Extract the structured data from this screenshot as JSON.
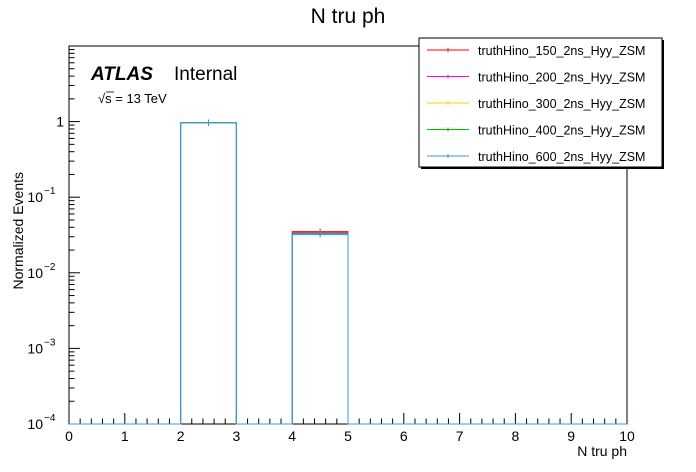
{
  "chart_data": {
    "type": "histogram",
    "title": "N tru ph",
    "xlabel": "N tru ph",
    "ylabel": "Normalized Events",
    "xlim": [
      0,
      10
    ],
    "ylim": [
      0.0001,
      10
    ],
    "log_y": true,
    "bin_edges": [
      0,
      1,
      2,
      3,
      4,
      5,
      6,
      7,
      8,
      9,
      10
    ],
    "x_tick_labels": [
      "0",
      "1",
      "2",
      "3",
      "4",
      "5",
      "6",
      "7",
      "8",
      "9",
      "10"
    ],
    "y_tick_labels": [
      {
        "value": 0.0001,
        "base": "10",
        "exp": "−4"
      },
      {
        "value": 0.001,
        "base": "10",
        "exp": "−3"
      },
      {
        "value": 0.01,
        "base": "10",
        "exp": "−2"
      },
      {
        "value": 0.1,
        "base": "10",
        "exp": "−1"
      },
      {
        "value": 1,
        "base": "1",
        "exp": ""
      }
    ],
    "annotations": {
      "atlas": "ATLAS",
      "internal": "Internal",
      "energy_prefix": "√s",
      "energy_value": " = 13 TeV"
    },
    "legend_position": "top-right",
    "series": [
      {
        "name": "truthHino_150_2ns_Hyy_ZSM",
        "color": "#ff0000",
        "values": [
          0,
          0,
          0.965,
          0,
          0.035,
          0,
          0,
          0,
          0,
          0
        ]
      },
      {
        "name": "truthHino_200_2ns_Hyy_ZSM",
        "color": "#ff00ff",
        "values": [
          0,
          0,
          0.966,
          0,
          0.034,
          0,
          0,
          0,
          0,
          0
        ]
      },
      {
        "name": "truthHino_300_2ns_Hyy_ZSM",
        "color": "#ffcc00",
        "values": [
          0,
          0,
          0.967,
          0,
          0.033,
          0,
          0,
          0,
          0,
          0
        ]
      },
      {
        "name": "truthHino_400_2ns_Hyy_ZSM",
        "color": "#00bb00",
        "values": [
          0,
          0,
          0.967,
          0,
          0.033,
          0,
          0,
          0,
          0,
          0
        ]
      },
      {
        "name": "truthHino_600_2ns_Hyy_ZSM",
        "color": "#3399ee",
        "values": [
          0,
          0,
          0.968,
          0,
          0.032,
          0,
          0,
          0,
          0,
          0
        ]
      }
    ]
  }
}
